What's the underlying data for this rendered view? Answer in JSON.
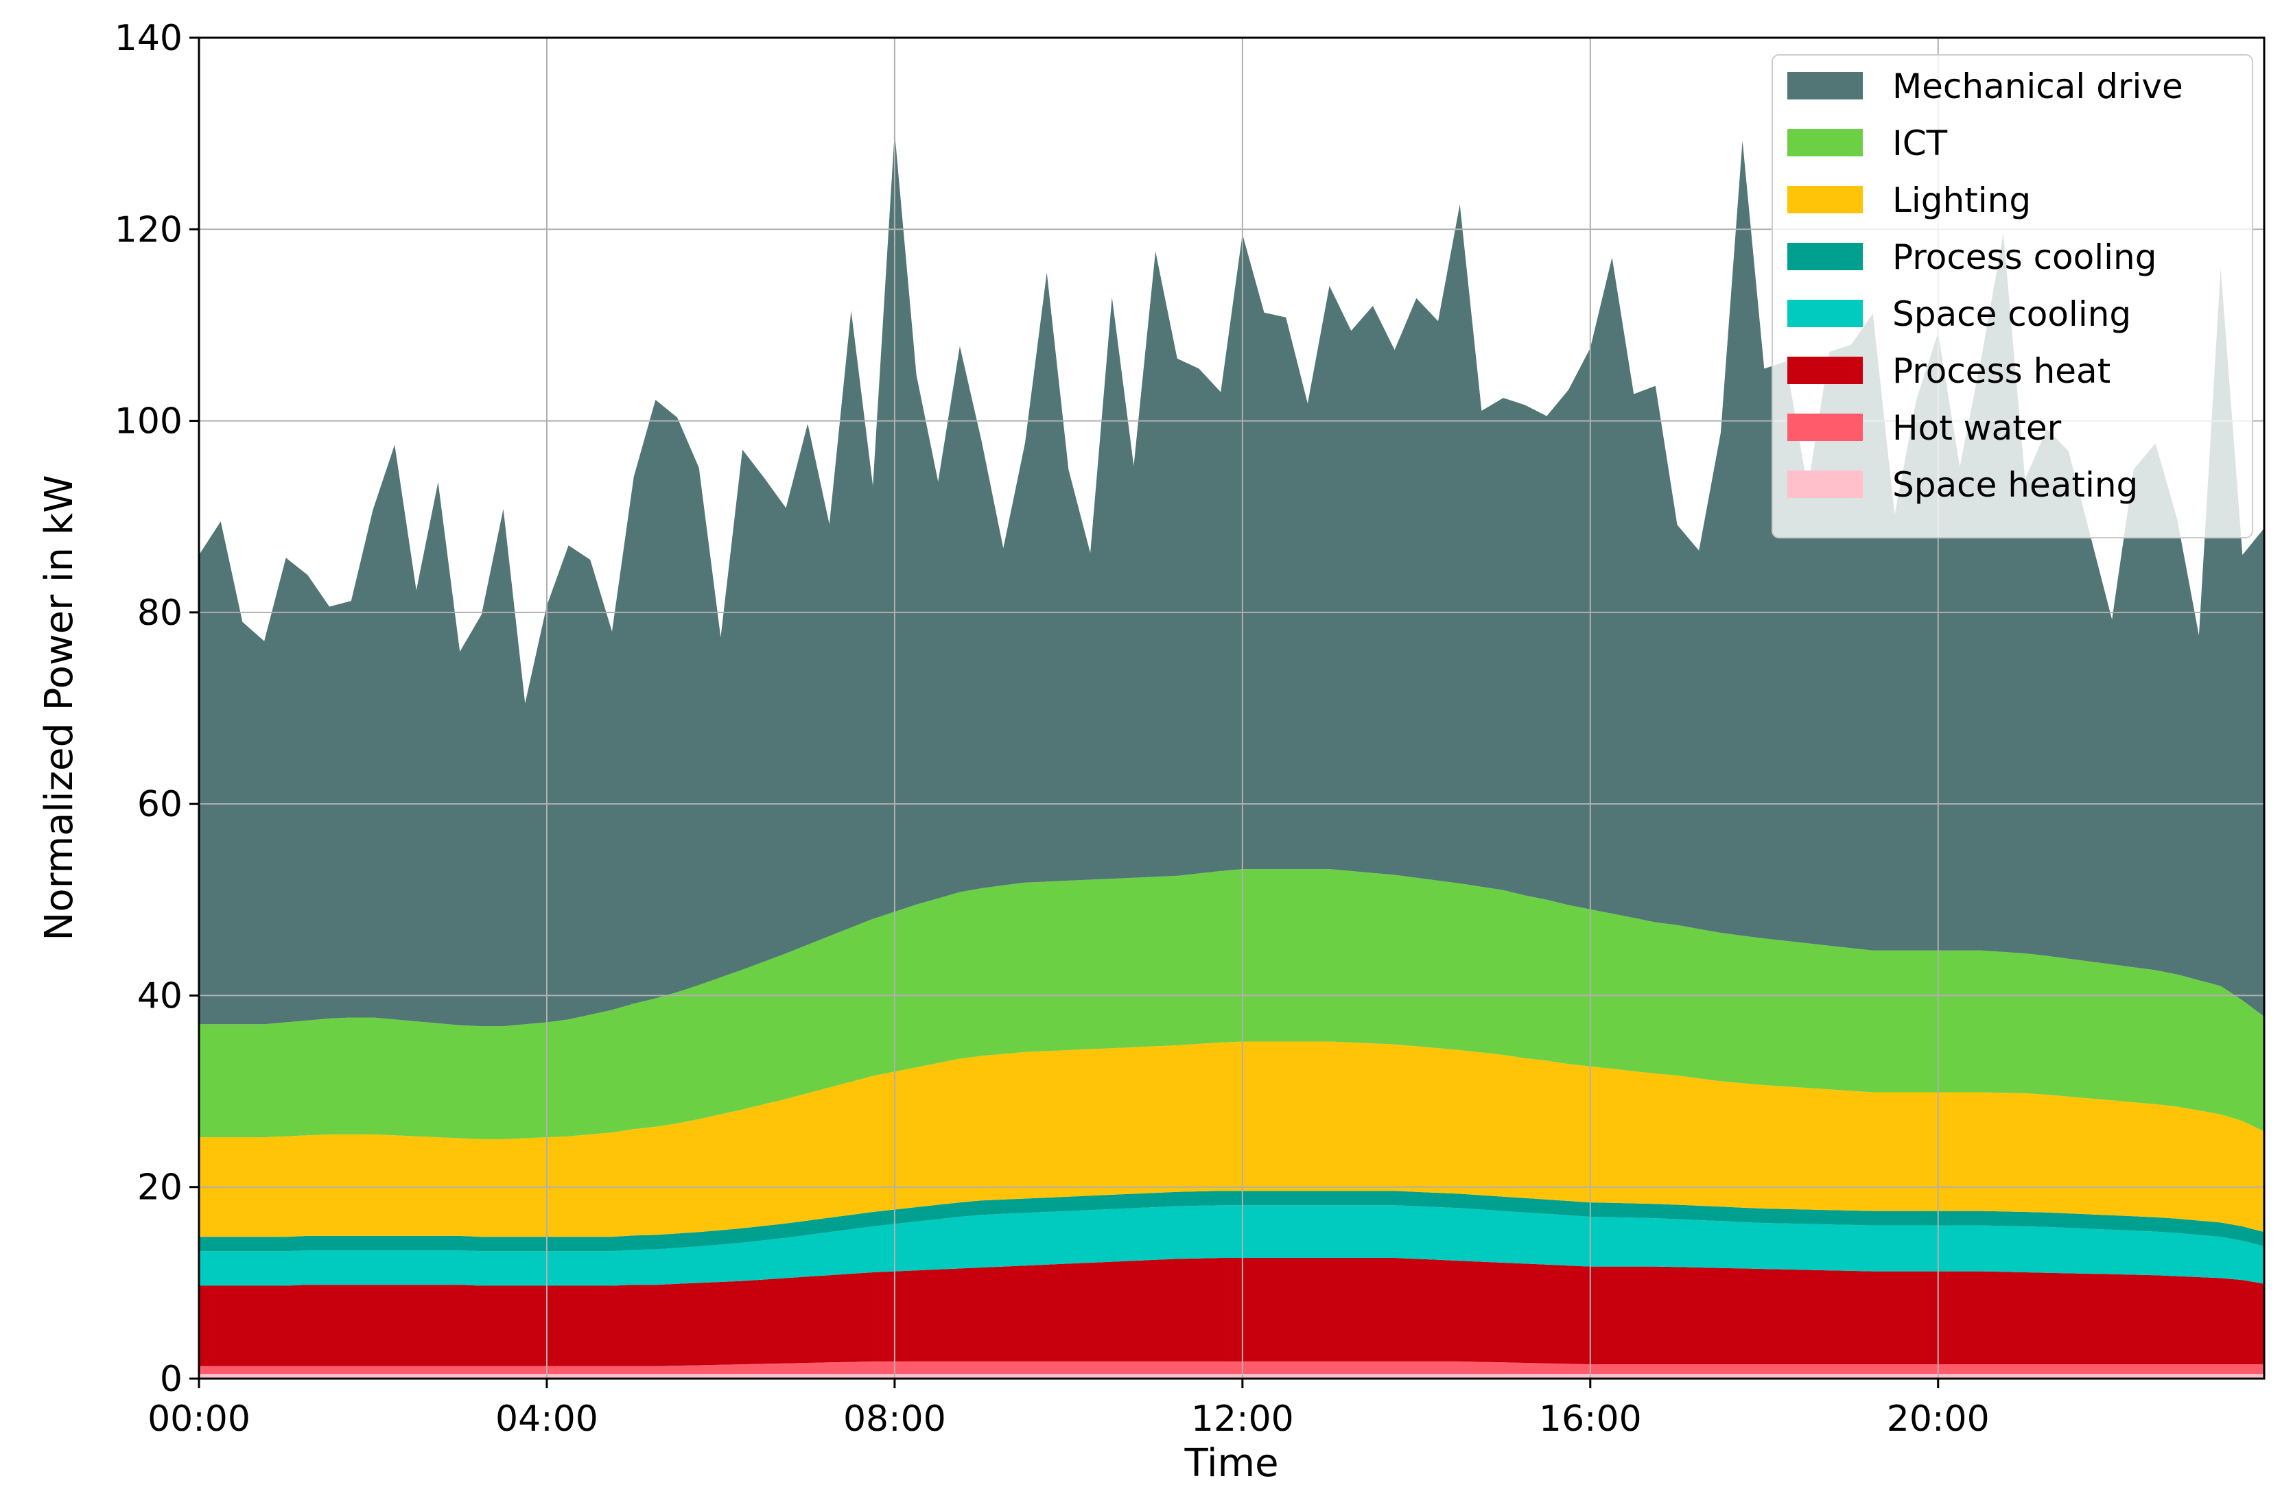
{
  "chart_data": {
    "type": "area",
    "stacked": true,
    "xlabel": "Time",
    "ylabel": "Normalized Power in kW",
    "ylim": [
      0,
      140
    ],
    "xlim_hours": [
      0,
      23.75
    ],
    "x_ticks": [
      "00:00",
      "04:00",
      "08:00",
      "12:00",
      "16:00",
      "20:00"
    ],
    "y_ticks": [
      0,
      20,
      40,
      60,
      80,
      100,
      120,
      140
    ],
    "grid": true,
    "legend_position": "top-right",
    "x_start": "00:00",
    "x_step": "00:15",
    "series": [
      {
        "name": "Space heating",
        "color": "#ffc0cb",
        "values": [
          0.5,
          0.5,
          0.5,
          0.5,
          0.5,
          0.5,
          0.5,
          0.5,
          0.5,
          0.5,
          0.5,
          0.5,
          0.5,
          0.5,
          0.5,
          0.5,
          0.5,
          0.5,
          0.5,
          0.5,
          0.5,
          0.5,
          0.5,
          0.5,
          0.5,
          0.5,
          0.5,
          0.5,
          0.5,
          0.5,
          0.5,
          0.5,
          0.5,
          0.5,
          0.5,
          0.5,
          0.5,
          0.5,
          0.5,
          0.5,
          0.5,
          0.5,
          0.5,
          0.5,
          0.5,
          0.5,
          0.5,
          0.5,
          0.5,
          0.5,
          0.5,
          0.5,
          0.5,
          0.5,
          0.5,
          0.5,
          0.5,
          0.5,
          0.5,
          0.5,
          0.5,
          0.5,
          0.5,
          0.5,
          0.5,
          0.5,
          0.5,
          0.5,
          0.5,
          0.5,
          0.5,
          0.5,
          0.5,
          0.5,
          0.5,
          0.5,
          0.5,
          0.5,
          0.5,
          0.5,
          0.5,
          0.5,
          0.5,
          0.5,
          0.5,
          0.5,
          0.5,
          0.5,
          0.5,
          0.5,
          0.5,
          0.5,
          0.5,
          0.5,
          0.5,
          0.5
        ]
      },
      {
        "name": "Hot water",
        "color": "#ff5b6b",
        "values": [
          0.8,
          0.8,
          0.8,
          0.8,
          0.8,
          0.8,
          0.8,
          0.8,
          0.8,
          0.8,
          0.8,
          0.8,
          0.8,
          0.8,
          0.8,
          0.8,
          0.8,
          0.8,
          0.8,
          0.8,
          0.8,
          0.8,
          0.85,
          0.9,
          0.95,
          1.0,
          1.05,
          1.1,
          1.15,
          1.2,
          1.25,
          1.3,
          1.3,
          1.3,
          1.3,
          1.3,
          1.3,
          1.3,
          1.3,
          1.3,
          1.3,
          1.3,
          1.3,
          1.3,
          1.3,
          1.3,
          1.3,
          1.3,
          1.3,
          1.3,
          1.3,
          1.3,
          1.3,
          1.3,
          1.3,
          1.3,
          1.3,
          1.3,
          1.3,
          1.25,
          1.2,
          1.15,
          1.1,
          1.05,
          1.0,
          1.0,
          1.0,
          1.0,
          1.0,
          1.0,
          1.0,
          1.0,
          1.0,
          1.0,
          1.0,
          1.0,
          1.0,
          1.0,
          1.0,
          1.0,
          1.0,
          1.0,
          1.0,
          1.0,
          1.0,
          1.0,
          1.0,
          1.0,
          1.0,
          1.0,
          1.0,
          1.0,
          1.0,
          1.0,
          1.0,
          1.0
        ]
      },
      {
        "name": "Process heat",
        "color": "#c8000d",
        "values": [
          8.4,
          8.4,
          8.4,
          8.4,
          8.4,
          8.5,
          8.5,
          8.5,
          8.5,
          8.5,
          8.5,
          8.5,
          8.5,
          8.4,
          8.4,
          8.4,
          8.4,
          8.4,
          8.4,
          8.4,
          8.5,
          8.5,
          8.55,
          8.6,
          8.65,
          8.7,
          8.8,
          8.9,
          9.0,
          9.1,
          9.2,
          9.3,
          9.4,
          9.5,
          9.6,
          9.7,
          9.8,
          9.9,
          10.0,
          10.1,
          10.2,
          10.3,
          10.4,
          10.5,
          10.6,
          10.7,
          10.75,
          10.8,
          10.8,
          10.8,
          10.8,
          10.8,
          10.8,
          10.8,
          10.8,
          10.8,
          10.7,
          10.6,
          10.5,
          10.45,
          10.4,
          10.35,
          10.3,
          10.25,
          10.2,
          10.2,
          10.2,
          10.2,
          10.15,
          10.1,
          10.05,
          10.0,
          9.95,
          9.9,
          9.85,
          9.8,
          9.75,
          9.7,
          9.7,
          9.7,
          9.7,
          9.7,
          9.7,
          9.65,
          9.6,
          9.55,
          9.5,
          9.45,
          9.4,
          9.35,
          9.3,
          9.2,
          9.1,
          9.0,
          8.8,
          8.4
        ]
      },
      {
        "name": "Space cooling",
        "color": "#00cbbe",
        "values": [
          3.6,
          3.6,
          3.6,
          3.6,
          3.6,
          3.6,
          3.6,
          3.6,
          3.6,
          3.6,
          3.6,
          3.6,
          3.6,
          3.6,
          3.6,
          3.6,
          3.6,
          3.6,
          3.6,
          3.6,
          3.65,
          3.7,
          3.75,
          3.8,
          3.9,
          4.0,
          4.1,
          4.2,
          4.35,
          4.5,
          4.65,
          4.8,
          4.95,
          5.1,
          5.25,
          5.4,
          5.5,
          5.5,
          5.5,
          5.5,
          5.5,
          5.5,
          5.5,
          5.5,
          5.5,
          5.5,
          5.5,
          5.5,
          5.5,
          5.5,
          5.5,
          5.5,
          5.5,
          5.5,
          5.5,
          5.5,
          5.5,
          5.5,
          5.5,
          5.45,
          5.4,
          5.35,
          5.3,
          5.25,
          5.2,
          5.15,
          5.1,
          5.05,
          5.0,
          4.95,
          4.9,
          4.85,
          4.8,
          4.8,
          4.8,
          4.8,
          4.8,
          4.8,
          4.8,
          4.8,
          4.8,
          4.8,
          4.8,
          4.8,
          4.8,
          4.8,
          4.75,
          4.7,
          4.65,
          4.6,
          4.55,
          4.5,
          4.4,
          4.3,
          4.1,
          3.9
        ]
      },
      {
        "name": "Process cooling",
        "color": "#00a090",
        "values": [
          1.5,
          1.5,
          1.5,
          1.5,
          1.5,
          1.5,
          1.5,
          1.5,
          1.5,
          1.5,
          1.5,
          1.5,
          1.5,
          1.5,
          1.5,
          1.5,
          1.5,
          1.5,
          1.5,
          1.5,
          1.5,
          1.5,
          1.5,
          1.5,
          1.5,
          1.5,
          1.5,
          1.5,
          1.5,
          1.5,
          1.5,
          1.5,
          1.5,
          1.5,
          1.5,
          1.5,
          1.5,
          1.5,
          1.5,
          1.5,
          1.5,
          1.5,
          1.5,
          1.5,
          1.5,
          1.5,
          1.5,
          1.5,
          1.5,
          1.5,
          1.5,
          1.5,
          1.5,
          1.5,
          1.5,
          1.5,
          1.5,
          1.5,
          1.5,
          1.5,
          1.5,
          1.5,
          1.5,
          1.5,
          1.5,
          1.5,
          1.5,
          1.5,
          1.5,
          1.5,
          1.5,
          1.5,
          1.5,
          1.5,
          1.5,
          1.5,
          1.5,
          1.5,
          1.5,
          1.5,
          1.5,
          1.5,
          1.5,
          1.5,
          1.5,
          1.5,
          1.5,
          1.5,
          1.5,
          1.5,
          1.5,
          1.5,
          1.5,
          1.5,
          1.5,
          1.5
        ]
      },
      {
        "name": "Lighting",
        "color": "#ffc408",
        "values": [
          10.4,
          10.4,
          10.4,
          10.4,
          10.5,
          10.5,
          10.6,
          10.6,
          10.6,
          10.5,
          10.4,
          10.3,
          10.2,
          10.2,
          10.2,
          10.3,
          10.4,
          10.5,
          10.7,
          10.9,
          11.1,
          11.3,
          11.5,
          11.8,
          12.1,
          12.4,
          12.7,
          13.0,
          13.3,
          13.6,
          13.9,
          14.2,
          14.4,
          14.6,
          14.8,
          15.0,
          15.1,
          15.2,
          15.3,
          15.3,
          15.3,
          15.3,
          15.3,
          15.3,
          15.3,
          15.3,
          15.4,
          15.5,
          15.6,
          15.6,
          15.6,
          15.6,
          15.6,
          15.5,
          15.4,
          15.3,
          15.2,
          15.1,
          15.0,
          14.9,
          14.8,
          14.6,
          14.5,
          14.3,
          14.2,
          14.0,
          13.8,
          13.6,
          13.5,
          13.3,
          13.1,
          13.0,
          12.9,
          12.8,
          12.7,
          12.6,
          12.5,
          12.4,
          12.4,
          12.4,
          12.4,
          12.4,
          12.4,
          12.4,
          12.4,
          12.3,
          12.2,
          12.1,
          12.0,
          11.9,
          11.8,
          11.7,
          11.5,
          11.3,
          11.0,
          10.5
        ]
      },
      {
        "name": "ICT",
        "color": "#6cd045",
        "values": [
          11.8,
          11.8,
          11.8,
          11.8,
          11.9,
          12.0,
          12.1,
          12.2,
          12.2,
          12.1,
          12.0,
          11.9,
          11.8,
          11.8,
          11.8,
          11.9,
          12.0,
          12.2,
          12.5,
          12.8,
          13.1,
          13.4,
          13.7,
          14.0,
          14.3,
          14.6,
          14.9,
          15.2,
          15.5,
          15.8,
          16.1,
          16.4,
          16.7,
          17.0,
          17.2,
          17.4,
          17.5,
          17.6,
          17.7,
          17.7,
          17.7,
          17.7,
          17.7,
          17.7,
          17.7,
          17.7,
          17.8,
          17.9,
          18.0,
          18.0,
          18.0,
          18.0,
          18.0,
          17.9,
          17.8,
          17.7,
          17.6,
          17.5,
          17.4,
          17.3,
          17.2,
          17.0,
          16.8,
          16.6,
          16.4,
          16.2,
          16.0,
          15.8,
          15.7,
          15.6,
          15.5,
          15.4,
          15.3,
          15.2,
          15.1,
          15.0,
          14.9,
          14.8,
          14.8,
          14.8,
          14.8,
          14.8,
          14.8,
          14.7,
          14.6,
          14.5,
          14.4,
          14.3,
          14.2,
          14.1,
          14.0,
          13.8,
          13.6,
          13.4,
          12.6,
          12.0
        ]
      },
      {
        "name": "Mechanical drive",
        "color": "#527575",
        "values": [
          49.0,
          52.5,
          42.0,
          40.0,
          48.5,
          46.5,
          43.0,
          43.5,
          53.0,
          60.0,
          45.0,
          56.5,
          39.0,
          43.0,
          54.0,
          33.5,
          43.5,
          49.5,
          47.5,
          39.5,
          55.0,
          62.5,
          60.0,
          54.0,
          35.5,
          54.3,
          50.5,
          46.5,
          54.4,
          43.0,
          64.4,
          45.2,
          81.4,
          55.3,
          43.5,
          57.0,
          46.7,
          35.2,
          45.9,
          63.6,
          42.9,
          34.1,
          60.7,
          43.0,
          65.3,
          54.0,
          52.7,
          50.0,
          66.3,
          58.1,
          57.6,
          48.6,
          60.9,
          56.4,
          59.2,
          54.8,
          60.5,
          58.4,
          70.9,
          49.7,
          51.4,
          51.2,
          50.5,
          53.8,
          58.6,
          68.5,
          54.7,
          56.0,
          41.8,
          39.5,
          52.2,
          83.0,
          59.5,
          60.5,
          47.5,
          62.0,
          63.0,
          66.5,
          45.5,
          57.5,
          64.5,
          50.5,
          62.0,
          75.0,
          49.5,
          55.0,
          53.0,
          44.5,
          36.0,
          52.0,
          55.0,
          47.5,
          36.0,
          75.0,
          46.5,
          51.0
        ]
      }
    ]
  }
}
